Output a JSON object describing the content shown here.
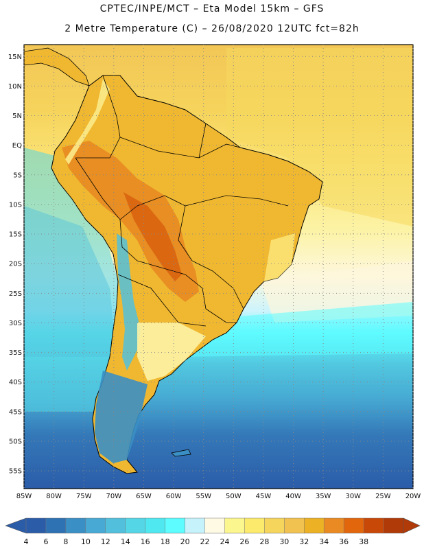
{
  "header": {
    "line1": "CPTEC/INPE/MCT –  Eta Model 15km – GFS",
    "line2": "2 Metre Temperature (C) – 26/08/2020 12UTC fct=82h"
  },
  "map": {
    "region": "South America",
    "lon_range": [
      -85,
      -20
    ],
    "lat_range": [
      -58,
      17
    ],
    "lat_labels": [
      "15N",
      "10N",
      "5N",
      "EQ",
      "5S",
      "10S",
      "15S",
      "20S",
      "25S",
      "30S",
      "35S",
      "40S",
      "45S",
      "50S",
      "55S"
    ],
    "lon_labels": [
      "85W",
      "80W",
      "75W",
      "70W",
      "65W",
      "60W",
      "55W",
      "50W",
      "45W",
      "40W",
      "35W",
      "30W",
      "25W",
      "20W"
    ]
  },
  "legend": {
    "labels": [
      "4",
      "6",
      "8",
      "10",
      "12",
      "14",
      "16",
      "18",
      "20",
      "22",
      "24",
      "26",
      "28",
      "30",
      "32",
      "34",
      "36",
      "38"
    ],
    "colors": [
      "#2b5ca8",
      "#2f72b4",
      "#3a8fc4",
      "#48a9d4",
      "#52c0dc",
      "#55d6e6",
      "#4fe8f0",
      "#5cfcff",
      "#c6f2fc",
      "#fefae4",
      "#fcf68e",
      "#fcea6c",
      "#f6d55c",
      "#f2c250",
      "#ecb124",
      "#e98a22",
      "#e2670c",
      "#c84808",
      "#b03a08"
    ],
    "under_color": "#2b5ca8",
    "over_color": "#b03a08"
  }
}
